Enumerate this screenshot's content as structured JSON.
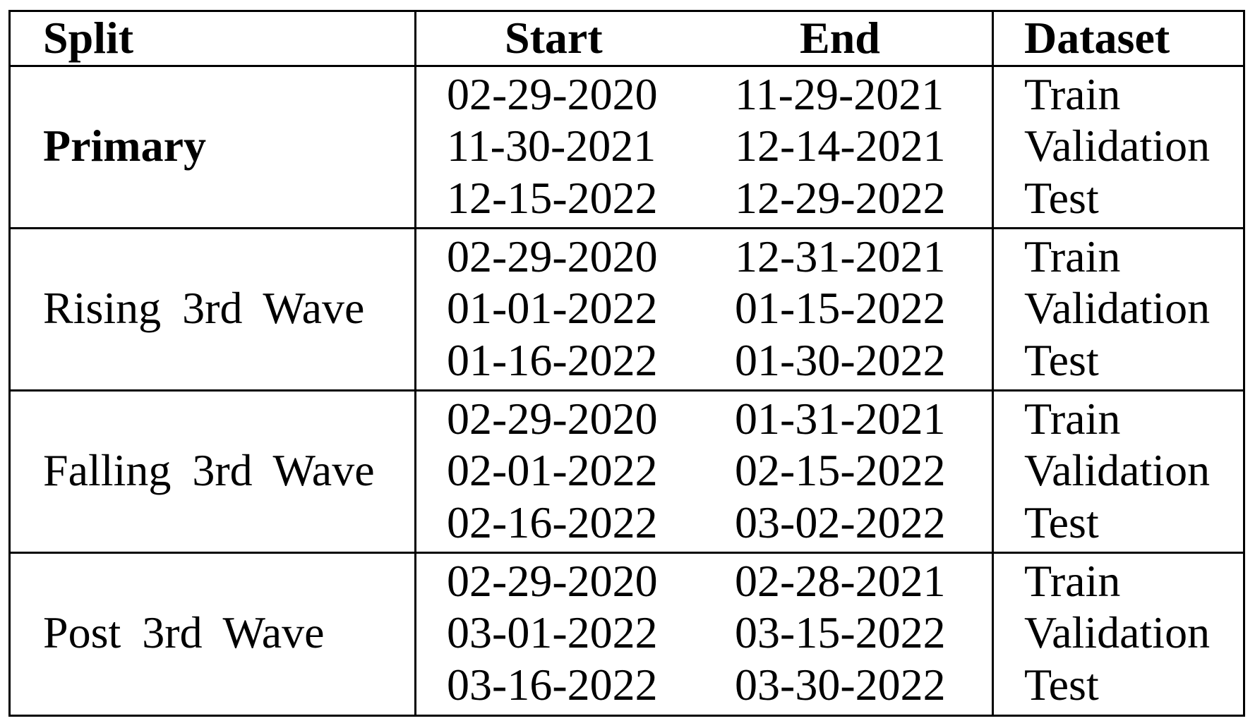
{
  "table": {
    "headers": [
      "Split",
      "Start",
      "End",
      "Dataset"
    ],
    "groups": [
      {
        "split": "Primary",
        "bold": true,
        "rows": [
          {
            "start": "02-29-2020",
            "end": "11-29-2021",
            "dataset": "Train"
          },
          {
            "start": "11-30-2021",
            "end": "12-14-2021",
            "dataset": "Validation"
          },
          {
            "start": "12-15-2022",
            "end": "12-29-2022",
            "dataset": "Test"
          }
        ]
      },
      {
        "split": "Rising 3rd Wave",
        "bold": false,
        "rows": [
          {
            "start": "02-29-2020",
            "end": "12-31-2021",
            "dataset": "Train"
          },
          {
            "start": "01-01-2022",
            "end": "01-15-2022",
            "dataset": "Validation"
          },
          {
            "start": "01-16-2022",
            "end": "01-30-2022",
            "dataset": "Test"
          }
        ]
      },
      {
        "split": "Falling 3rd Wave",
        "bold": false,
        "rows": [
          {
            "start": "02-29-2020",
            "end": "01-31-2021",
            "dataset": "Train"
          },
          {
            "start": "02-01-2022",
            "end": "02-15-2022",
            "dataset": "Validation"
          },
          {
            "start": "02-16-2022",
            "end": "03-02-2022",
            "dataset": "Test"
          }
        ]
      },
      {
        "split": "Post 3rd Wave",
        "bold": false,
        "rows": [
          {
            "start": "02-29-2020",
            "end": "02-28-2021",
            "dataset": "Train"
          },
          {
            "start": "03-01-2022",
            "end": "03-15-2022",
            "dataset": "Validation"
          },
          {
            "start": "03-16-2022",
            "end": "03-30-2022",
            "dataset": "Test"
          }
        ]
      }
    ]
  }
}
